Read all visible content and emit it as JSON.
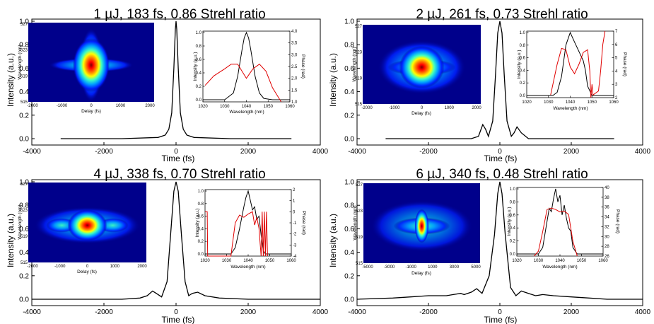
{
  "colors": {
    "primary_line": "#000000",
    "phase_line": "#e00000",
    "background": "#ffffff"
  },
  "chart_data": [
    {
      "type": "line",
      "title": "1 µJ, 183 fs, 0.86 Strehl ratio",
      "xlabel": "Time (fs)",
      "ylabel": "Intensity (a.u.)",
      "xlim": [
        -4000,
        4000
      ],
      "ylim": [
        0,
        1.0
      ],
      "xticks": [
        -4000,
        -2000,
        0,
        2000,
        4000
      ],
      "yticks": [
        0.0,
        0.2,
        0.4,
        0.6,
        0.8,
        1.0
      ],
      "series": [
        {
          "x": [
            -3200,
            -1500,
            -500,
            -300,
            -200,
            -120,
            -60,
            -20,
            0,
            20,
            60,
            120,
            200,
            300,
            500,
            1500,
            3200
          ],
          "y": [
            0.0,
            0.0,
            0.01,
            0.03,
            0.08,
            0.22,
            0.6,
            0.93,
            1.0,
            0.93,
            0.6,
            0.22,
            0.08,
            0.03,
            0.01,
            0.0,
            0.0
          ]
        }
      ],
      "inset_spectrogram": {
        "type": "heatmap",
        "xlabel": "Delay (fs)",
        "ylabel": "Wavelength (nm)",
        "xlim": [
          -2000,
          2000
        ],
        "xticks": [
          -2000,
          -1000,
          0,
          1000,
          2000
        ],
        "ylim": [
          515,
          527
        ],
        "yticks": [
          515,
          519,
          523,
          527
        ],
        "pattern": "cross"
      },
      "inset_spectrum": {
        "type": "line",
        "xlabel": "Wavelength (nm)",
        "ylabel": "Intensity (a.u.)",
        "y2label": "Phase (rad)",
        "xlim": [
          1020,
          1060
        ],
        "xticks": [
          1020,
          1030,
          1040,
          1050,
          1060
        ],
        "ylim": [
          0,
          1.0
        ],
        "yticks": [
          0.0,
          0.2,
          0.4,
          0.6,
          0.8,
          1.0
        ],
        "y2lim": [
          1.0,
          4.0
        ],
        "y2ticks": [
          "1.0",
          "1.5",
          "2.0",
          "2.5",
          "3.0",
          "3.5",
          "4.0"
        ],
        "series": [
          {
            "name": "intensity",
            "x": [
              1020,
              1030,
              1034,
              1036,
              1038,
              1039,
              1040,
              1041,
              1042,
              1044,
              1046,
              1048,
              1052,
              1060
            ],
            "y": [
              0.0,
              0.0,
              0.1,
              0.35,
              0.75,
              0.92,
              1.0,
              0.92,
              0.75,
              0.35,
              0.1,
              0.02,
              0.0,
              0.0
            ]
          },
          {
            "name": "phase",
            "x": [
              1021,
              1025,
              1030,
              1033,
              1036,
              1040,
              1043,
              1046,
              1049,
              1052,
              1056
            ],
            "y": [
              1.7,
              2.1,
              2.4,
              2.6,
              2.6,
              2.0,
              2.4,
              2.6,
              2.3,
              1.6,
              1.0
            ]
          }
        ]
      }
    },
    {
      "type": "line",
      "title": "2 µJ, 261 fs, 0.73 Strehl ratio",
      "xlabel": "Time (fs)",
      "ylabel": "Intensity (a.u.)",
      "xlim": [
        -4000,
        4000
      ],
      "ylim": [
        0,
        1.0
      ],
      "xticks": [
        -4000,
        -2000,
        0,
        2000,
        4000
      ],
      "yticks": [
        0.0,
        0.2,
        0.4,
        0.6,
        0.8,
        1.0
      ],
      "series": [
        {
          "x": [
            -3200,
            -1500,
            -800,
            -600,
            -480,
            -400,
            -320,
            -200,
            -120,
            -60,
            0,
            60,
            120,
            200,
            320,
            400,
            480,
            600,
            800,
            1500,
            3200
          ],
          "y": [
            0.0,
            0.0,
            0.0,
            0.02,
            0.12,
            0.08,
            0.02,
            0.15,
            0.55,
            0.9,
            1.0,
            0.9,
            0.55,
            0.15,
            0.02,
            0.05,
            0.1,
            0.05,
            0.0,
            0.0,
            0.0
          ]
        }
      ],
      "inset_spectrogram": {
        "type": "heatmap",
        "xlabel": "Delay (fs)",
        "ylabel": "Wavelength (nm)",
        "xlim": [
          -2000,
          2000
        ],
        "xticks": [
          -2000,
          -1000,
          0,
          1000,
          2000
        ],
        "ylim": [
          515,
          527
        ],
        "yticks": [
          515,
          519,
          523,
          527
        ],
        "pattern": "box"
      },
      "inset_spectrum": {
        "type": "line",
        "xlabel": "Wavelength (nm)",
        "ylabel": "Intensity (a.u.)",
        "y2label": "Phase (rad)",
        "xlim": [
          1020,
          1060
        ],
        "xticks": [
          1020,
          1030,
          1040,
          1050,
          1060
        ],
        "ylim": [
          0,
          1.0
        ],
        "yticks": [
          0.0,
          0.2,
          0.4,
          0.6,
          0.8,
          1.0
        ],
        "y2lim": [
          2,
          7
        ],
        "y2ticks": [
          "2",
          "3",
          "4",
          "5",
          "6",
          "7"
        ],
        "series": [
          {
            "name": "intensity",
            "x": [
              1020,
              1032,
              1034,
              1036,
              1038,
              1040,
              1042,
              1044,
              1046,
              1047,
              1048,
              1050,
              1060
            ],
            "y": [
              0.0,
              0.0,
              0.05,
              0.3,
              0.8,
              1.0,
              0.85,
              0.7,
              0.55,
              0.4,
              0.15,
              0.0,
              0.0
            ]
          },
          {
            "name": "phase",
            "x": [
              1031,
              1034,
              1036,
              1038,
              1040,
              1042,
              1044,
              1046,
              1048,
              1049,
              1049.5,
              1050,
              1050.5,
              1053,
              1054,
              1055,
              1056
            ],
            "y": [
              2.2,
              4.5,
              5.7,
              5.6,
              4.3,
              3.8,
              4.5,
              5.4,
              5.6,
              4.0,
              2.0,
              3.0,
              2.2,
              2.5,
              4.0,
              6.0,
              7.0
            ]
          }
        ]
      }
    },
    {
      "type": "line",
      "title": "4 µJ, 338 fs, 0.70 Strehl ratio",
      "xlabel": "Time (fs)",
      "ylabel": "Intensity (a.u.)",
      "xlim": [
        -4000,
        4000
      ],
      "ylim": [
        0,
        1.0
      ],
      "xticks": [
        -4000,
        -2000,
        0,
        2000,
        4000
      ],
      "yticks": [
        0.0,
        0.2,
        0.4,
        0.6,
        0.8,
        1.0
      ],
      "series": [
        {
          "x": [
            -4000,
            -1500,
            -1000,
            -800,
            -650,
            -550,
            -400,
            -250,
            -150,
            -60,
            0,
            60,
            150,
            250,
            350,
            450,
            600,
            800,
            1200,
            2000,
            4000
          ],
          "y": [
            0.0,
            0.0,
            0.01,
            0.03,
            0.07,
            0.05,
            0.02,
            0.15,
            0.55,
            0.92,
            1.0,
            0.92,
            0.55,
            0.15,
            0.03,
            0.05,
            0.06,
            0.03,
            0.01,
            0.0,
            0.0
          ]
        }
      ],
      "inset_spectrogram": {
        "type": "heatmap",
        "xlabel": "Delay (fs)",
        "ylabel": "Wavelength (nm)",
        "xlim": [
          -2000,
          2000
        ],
        "xticks": [
          -2000,
          -1000,
          0,
          1000,
          2000
        ],
        "ylim": [
          515,
          527
        ],
        "yticks": [
          515,
          519,
          523,
          527
        ],
        "pattern": "wing"
      },
      "inset_spectrum": {
        "type": "line",
        "xlabel": "Wavelength (nm)",
        "ylabel": "Intensity (a.u.)",
        "y2label": "Phase (rad)",
        "xlim": [
          1020,
          1060
        ],
        "xticks": [
          1020,
          1030,
          1040,
          1050,
          1060
        ],
        "ylim": [
          0,
          1.0
        ],
        "yticks": [
          0.0,
          0.2,
          0.4,
          0.6,
          0.8,
          1.0
        ],
        "y2lim": [
          -4,
          2
        ],
        "y2ticks": [
          "-4",
          "-3",
          "-2",
          "-1",
          "0",
          "1",
          "2"
        ],
        "series": [
          {
            "name": "intensity",
            "x": [
              1020,
              1032,
              1034,
              1036,
              1038,
              1039,
              1040,
              1041,
              1042,
              1043,
              1044,
              1045,
              1046,
              1047,
              1048,
              1060
            ],
            "y": [
              0.0,
              0.0,
              0.1,
              0.4,
              0.75,
              0.9,
              1.0,
              0.85,
              0.7,
              0.75,
              0.55,
              0.6,
              0.3,
              0.05,
              0.0,
              0.0
            ]
          },
          {
            "name": "phase",
            "x": [
              1020,
              1021,
              1021.2,
              1032,
              1034,
              1036,
              1038,
              1040,
              1042,
              1043,
              1044,
              1045,
              1046,
              1046.5,
              1047,
              1047.5,
              1048,
              1048.5,
              1049
            ],
            "y": [
              0.0,
              0.0,
              -4.0,
              -4.0,
              -1.0,
              -0.3,
              -0.5,
              -0.2,
              0.0,
              -1.2,
              -0.5,
              -1.5,
              -4.0,
              0.0,
              -4.0,
              0.0,
              -4.0,
              0.0,
              -4.0
            ]
          }
        ]
      }
    },
    {
      "type": "line",
      "title": "6 µJ, 340 fs, 0.48 Strehl ratio",
      "xlabel": "Time (fs)",
      "ylabel": "Intensity (a.u.)",
      "xlim": [
        -4000,
        4000
      ],
      "ylim": [
        0,
        1.0
      ],
      "xticks": [
        -4000,
        -2000,
        0,
        2000,
        4000
      ],
      "yticks": [
        0.0,
        0.2,
        0.4,
        0.6,
        0.8,
        1.0
      ],
      "series": [
        {
          "x": [
            -4000,
            -3000,
            -2500,
            -2000,
            -1500,
            -1100,
            -1000,
            -800,
            -650,
            -500,
            -300,
            -150,
            -60,
            0,
            60,
            150,
            300,
            450,
            600,
            800,
            1000,
            1200,
            1500,
            2000,
            2500,
            3000,
            4000
          ],
          "y": [
            0.0,
            0.01,
            0.02,
            0.03,
            0.03,
            0.05,
            0.04,
            0.06,
            0.09,
            0.05,
            0.2,
            0.55,
            0.9,
            1.0,
            0.9,
            0.55,
            0.1,
            0.03,
            0.07,
            0.05,
            0.03,
            0.04,
            0.03,
            0.02,
            0.01,
            0.0,
            0.0
          ]
        }
      ],
      "inset_spectrogram": {
        "type": "heatmap",
        "xlabel": "Delay (fs)",
        "ylabel": "Wavelength (nm)",
        "xlim": [
          -5000,
          5000
        ],
        "xticks": [
          -5000,
          -3000,
          -1000,
          1000,
          3000,
          5000
        ],
        "ylim": [
          515,
          527
        ],
        "yticks": [
          515,
          519,
          523,
          527
        ],
        "pattern": "spread"
      },
      "inset_spectrum": {
        "type": "line",
        "xlabel": "Wavelength (nm)",
        "ylabel": "Intensity (a.u.)",
        "y2label": "Phase (rad)",
        "xlim": [
          1020,
          1060
        ],
        "xticks": [
          1020,
          1030,
          1040,
          1050,
          1060
        ],
        "ylim": [
          0,
          1.0
        ],
        "yticks": [
          0.0,
          0.2,
          0.4,
          0.6,
          0.8,
          1.0
        ],
        "y2lim": [
          26,
          40
        ],
        "y2ticks": [
          "26",
          "28",
          "30",
          "32",
          "34",
          "36",
          "38",
          "40"
        ],
        "series": [
          {
            "name": "intensity",
            "x": [
              1020,
              1030,
              1032,
              1034,
              1035,
              1036,
              1037,
              1038,
              1039,
              1040,
              1041,
              1042,
              1043,
              1044,
              1045,
              1046,
              1048,
              1060
            ],
            "y": [
              0.0,
              0.0,
              0.1,
              0.5,
              0.7,
              0.65,
              0.85,
              1.0,
              0.8,
              0.9,
              0.6,
              0.75,
              0.55,
              0.4,
              0.35,
              0.1,
              0.0,
              0.0
            ]
          },
          {
            "name": "phase",
            "x": [
              1028,
              1030,
              1032,
              1034,
              1036,
              1038,
              1040,
              1042,
              1044,
              1046,
              1048
            ],
            "y": [
              26,
              27,
              31,
              35.5,
              35.8,
              35.5,
              35.0,
              35.2,
              34.5,
              29,
              26
            ]
          }
        ]
      }
    }
  ]
}
